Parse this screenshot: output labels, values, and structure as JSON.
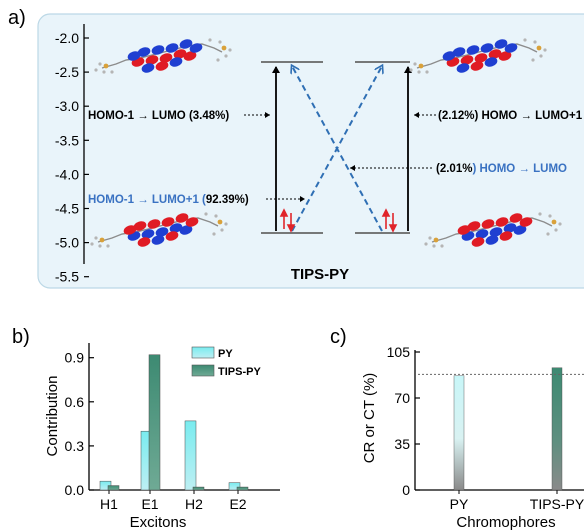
{
  "colors": {
    "panel_bg": "#e9f4fa",
    "panel_border": "#bcd8e6",
    "solid_arrow": "#000000",
    "dashed_arrow": "#2f6fb4",
    "blue_text": "#3a72c2",
    "spin_arrow": "#e0252b",
    "level_line": "#666666",
    "py_top": "#79ecef",
    "py_bottom": "#bdeff3",
    "tips_top": "#3d8a72",
    "tips_bottom": "#6faa95",
    "grey_bottom": "#888888",
    "dotted_ref": "#666666"
  },
  "icons": [
    "orbital-density-icon",
    "legend-swatch-icon"
  ],
  "panel_a": {
    "label": "a)",
    "title": "TIPS-PY",
    "yticks": [
      "-2.0",
      "-2.5",
      "-3.0",
      "-3.5",
      "-4.0",
      "-4.5",
      "-5.0",
      "-5.5"
    ],
    "annotations": {
      "left_top": {
        "prefix": "HOMO-1 → LUMO (",
        "value": "3.48%",
        "suffix": ")"
      },
      "left_bottom": {
        "prefix": "HOMO-1 → LUMO+1 (",
        "value": "92.39%",
        "suffix": ")"
      },
      "right_top": {
        "prefix": "(",
        "value": "2.12%",
        "suffix": ") HOMO → LUMO+1"
      },
      "right_mid": {
        "prefix": "(",
        "value": "2.01%",
        "suffix": ") HOMO → LUMO"
      }
    }
  },
  "chart_data": [
    {
      "type": "bar",
      "panel": "b)",
      "categories": [
        "H1",
        "E1",
        "H2",
        "E2"
      ],
      "series": [
        {
          "name": "PY",
          "values": [
            0.06,
            0.4,
            0.47,
            0.05
          ]
        },
        {
          "name": "TIPS-PY",
          "values": [
            0.03,
            0.92,
            0.02,
            0.02
          ]
        }
      ],
      "xlabel": "Excitons",
      "ylabel": "Contribution",
      "ylim": [
        0,
        1.0
      ],
      "yticks": [
        "0.0",
        "0.3",
        "0.6",
        "0.9"
      ],
      "legend": "top-right"
    },
    {
      "type": "bar",
      "panel": "c)",
      "categories": [
        "PY",
        "TIPS-PY"
      ],
      "values": [
        87,
        93
      ],
      "xlabel": "Chromophores",
      "ylabel": "CR or CT (%)",
      "ylim": [
        0,
        105
      ],
      "yticks": [
        "0",
        "35",
        "70",
        "105"
      ],
      "reference_line": 88
    }
  ]
}
